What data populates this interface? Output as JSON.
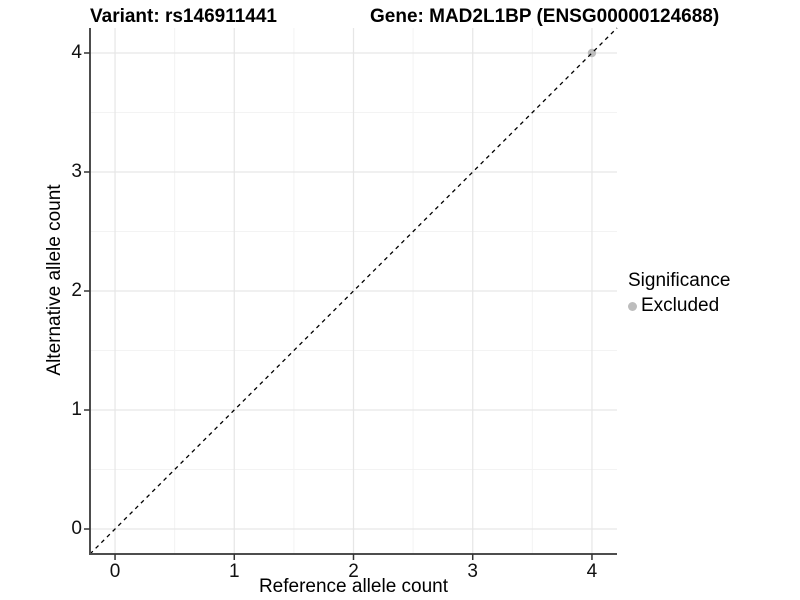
{
  "header": {
    "title_left": "Variant: rs146911441",
    "title_right": "Gene: MAD2L1BP (ENSG00000124688)"
  },
  "legend": {
    "title": "Significance",
    "items": [
      {
        "label": "Excluded",
        "color": "#bdbdbd"
      }
    ]
  },
  "chart_data": {
    "type": "scatter",
    "title": "Variant: rs146911441 / Gene: MAD2L1BP (ENSG00000124688)",
    "xlabel": "Reference allele count",
    "ylabel": "Alternative allele count",
    "xlim": [
      -0.21,
      4.21
    ],
    "ylim": [
      -0.21,
      4.21
    ],
    "xticks": [
      0,
      1,
      2,
      3,
      4
    ],
    "yticks": [
      0,
      1,
      2,
      3,
      4
    ],
    "grid": {
      "on": true,
      "minor_ticks": [
        0.5,
        1.5,
        2.5,
        3.5
      ]
    },
    "identity_line": {
      "slope": 1,
      "intercept": 0,
      "style": "dashed",
      "color": "#000000"
    },
    "series": [
      {
        "name": "Excluded",
        "points": [
          {
            "x": 4,
            "y": 4
          }
        ],
        "color": "#bdbdbd"
      }
    ],
    "legend_position": "right",
    "colors": {
      "background": "#ffffff",
      "grid_major": "#e6e6e6",
      "grid_minor": "#f3f3f3",
      "axis_line": "#4d4d4d",
      "tick_mark": "#333333"
    }
  }
}
